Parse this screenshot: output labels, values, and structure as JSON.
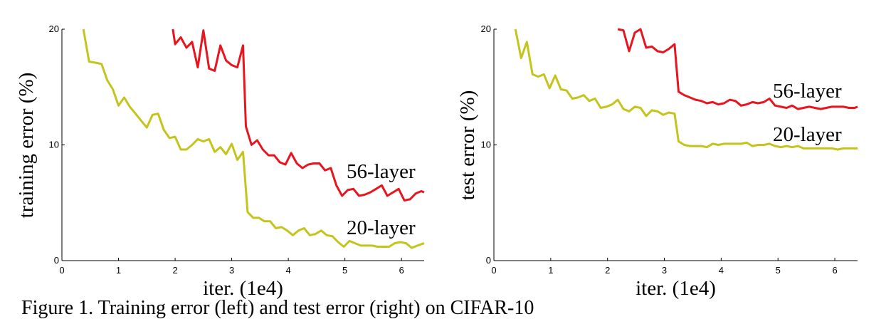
{
  "caption": "Figure 1. Training error (left) and test error (right) on CIFAR-10",
  "chart_data": [
    {
      "type": "line",
      "xlabel": "iter. (1e4)",
      "ylabel": "training error (%)",
      "xlim": [
        0,
        6.4
      ],
      "ylim": [
        0,
        20
      ],
      "xticks": [
        0,
        1,
        2,
        3,
        4,
        5,
        6
      ],
      "yticks": [
        0,
        10,
        20
      ],
      "grid": false,
      "series": [
        {
          "name": "56-layer",
          "color": "#e8141e",
          "x": [
            1.96,
            2.0,
            2.1,
            2.2,
            2.3,
            2.4,
            2.5,
            2.6,
            2.7,
            2.8,
            2.9,
            3.0,
            3.1,
            3.2,
            3.25,
            3.35,
            3.45,
            3.55,
            3.65,
            3.75,
            3.85,
            3.95,
            4.05,
            4.15,
            4.25,
            4.35,
            4.45,
            4.55,
            4.65,
            4.75,
            4.85,
            4.95,
            5.05,
            5.15,
            5.25,
            5.35,
            5.45,
            5.55,
            5.65,
            5.75,
            5.85,
            5.95,
            6.05,
            6.15,
            6.25,
            6.35,
            6.4
          ],
          "y": [
            20.0,
            18.7,
            19.3,
            18.4,
            18.9,
            16.7,
            19.9,
            16.6,
            16.4,
            18.6,
            17.3,
            16.9,
            16.7,
            18.6,
            11.6,
            10.0,
            10.4,
            9.6,
            9.1,
            9.1,
            8.5,
            8.3,
            9.3,
            8.4,
            8.0,
            8.3,
            8.4,
            8.4,
            7.8,
            8.0,
            6.5,
            5.6,
            6.1,
            6.2,
            5.6,
            5.7,
            5.9,
            6.2,
            6.5,
            5.6,
            5.9,
            6.2,
            5.2,
            5.3,
            5.8,
            6.0,
            5.9
          ]
        },
        {
          "name": "20-layer",
          "color": "#c4c41c",
          "x": [
            0.38,
            0.48,
            0.6,
            0.7,
            0.8,
            0.9,
            1.0,
            1.1,
            1.2,
            1.3,
            1.4,
            1.5,
            1.6,
            1.7,
            1.8,
            1.9,
            2.0,
            2.1,
            2.2,
            2.3,
            2.4,
            2.5,
            2.6,
            2.7,
            2.8,
            2.9,
            3.0,
            3.1,
            3.2,
            3.28,
            3.38,
            3.48,
            3.58,
            3.68,
            3.78,
            3.88,
            3.98,
            4.08,
            4.18,
            4.28,
            4.38,
            4.48,
            4.58,
            4.68,
            4.78,
            4.88,
            4.98,
            5.08,
            5.18,
            5.28,
            5.38,
            5.48,
            5.58,
            5.68,
            5.78,
            5.88,
            5.98,
            6.08,
            6.18,
            6.28,
            6.4
          ],
          "y": [
            20.0,
            17.2,
            17.1,
            17.0,
            15.6,
            14.8,
            13.4,
            14.1,
            13.3,
            12.7,
            12.1,
            11.5,
            12.6,
            12.7,
            11.3,
            10.6,
            10.7,
            9.6,
            9.6,
            10.0,
            10.5,
            10.3,
            10.5,
            9.4,
            9.8,
            9.2,
            10.1,
            8.7,
            9.4,
            4.2,
            3.7,
            3.7,
            3.4,
            3.4,
            2.8,
            2.9,
            2.6,
            2.2,
            2.6,
            2.8,
            2.2,
            2.3,
            2.6,
            2.2,
            2.1,
            1.6,
            1.2,
            1.7,
            1.5,
            1.3,
            1.3,
            1.3,
            1.2,
            1.2,
            1.2,
            1.5,
            1.6,
            1.5,
            1.1,
            1.3,
            1.5
          ]
        }
      ]
    },
    {
      "type": "line",
      "xlabel": "iter. (1e4)",
      "ylabel": "test error (%)",
      "xlim": [
        0,
        6.4
      ],
      "ylim": [
        0,
        20
      ],
      "xticks": [
        0,
        1,
        2,
        3,
        4,
        5,
        6
      ],
      "yticks": [
        0,
        10,
        20
      ],
      "grid": false,
      "series": [
        {
          "name": "56-layer",
          "color": "#e8141e",
          "x": [
            2.18,
            2.28,
            2.38,
            2.48,
            2.58,
            2.68,
            2.78,
            2.88,
            2.98,
            3.08,
            3.18,
            3.25,
            3.35,
            3.45,
            3.55,
            3.65,
            3.75,
            3.85,
            3.95,
            4.05,
            4.15,
            4.25,
            4.35,
            4.45,
            4.55,
            4.65,
            4.75,
            4.85,
            4.95,
            5.05,
            5.15,
            5.25,
            5.35,
            5.45,
            5.55,
            5.65,
            5.75,
            5.85,
            5.95,
            6.05,
            6.15,
            6.25,
            6.35,
            6.4
          ],
          "y": [
            20.0,
            19.9,
            18.1,
            19.7,
            20.0,
            18.4,
            18.5,
            18.1,
            18.0,
            18.3,
            18.7,
            14.6,
            14.3,
            14.1,
            13.9,
            13.8,
            13.6,
            13.7,
            13.5,
            13.6,
            13.9,
            13.8,
            13.4,
            13.5,
            13.7,
            13.6,
            13.7,
            14.0,
            13.4,
            13.3,
            13.2,
            13.4,
            13.1,
            13.2,
            13.3,
            13.2,
            13.1,
            13.2,
            13.3,
            13.3,
            13.3,
            13.2,
            13.2,
            13.3
          ]
        },
        {
          "name": "20-layer",
          "color": "#c4c41c",
          "x": [
            0.38,
            0.48,
            0.58,
            0.68,
            0.78,
            0.88,
            0.98,
            1.08,
            1.18,
            1.28,
            1.38,
            1.48,
            1.58,
            1.68,
            1.78,
            1.88,
            1.98,
            2.08,
            2.18,
            2.28,
            2.38,
            2.48,
            2.58,
            2.68,
            2.78,
            2.88,
            2.98,
            3.08,
            3.18,
            3.25,
            3.35,
            3.45,
            3.55,
            3.65,
            3.75,
            3.85,
            3.95,
            4.05,
            4.15,
            4.25,
            4.35,
            4.45,
            4.55,
            4.65,
            4.75,
            4.85,
            4.95,
            5.05,
            5.15,
            5.25,
            5.35,
            5.45,
            5.55,
            5.65,
            5.75,
            5.85,
            5.95,
            6.05,
            6.15,
            6.25,
            6.35,
            6.4
          ],
          "y": [
            20.0,
            17.5,
            18.9,
            16.1,
            15.9,
            16.1,
            14.9,
            16.0,
            14.8,
            14.7,
            14.0,
            14.1,
            14.3,
            13.8,
            14.0,
            13.2,
            13.3,
            13.5,
            13.9,
            13.1,
            12.9,
            13.3,
            13.2,
            12.5,
            13.0,
            12.9,
            12.6,
            12.8,
            12.7,
            10.3,
            10.0,
            9.9,
            9.9,
            9.9,
            9.8,
            10.1,
            10.0,
            10.1,
            10.1,
            10.1,
            10.1,
            10.2,
            9.9,
            10.0,
            10.0,
            10.1,
            9.9,
            9.8,
            9.9,
            9.8,
            9.9,
            9.7,
            9.7,
            9.7,
            9.7,
            9.7,
            9.7,
            9.6,
            9.7,
            9.7,
            9.7,
            9.7
          ]
        }
      ]
    }
  ]
}
